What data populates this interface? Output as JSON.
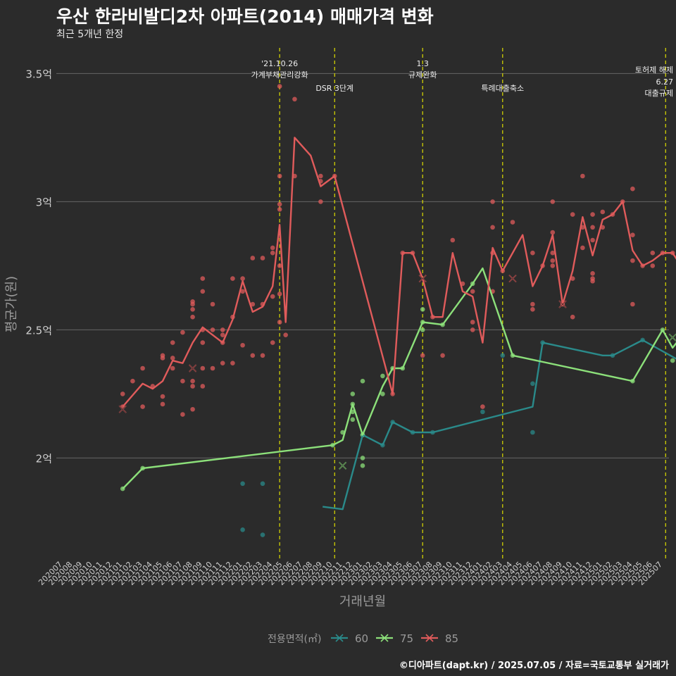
{
  "chart_data": {
    "type": "line",
    "title": "우산 한라비발디2차 아파트(2014) 매매가격 변화",
    "subtitle": "최근 5개년 한정",
    "xlabel": "거래년월",
    "ylabel": "평균가(원)",
    "caption": "©디아파트(dapt.kr) / 2025.07.05 / 자료=국토교통부 실거래가",
    "legend": {
      "title": "전용면적(㎡)",
      "position": "bottom"
    },
    "ylim": [
      1.6,
      3.6
    ],
    "y_ticks": [
      {
        "value": 2.0,
        "label": "2억"
      },
      {
        "value": 2.5,
        "label": "2.5억"
      },
      {
        "value": 3.0,
        "label": "3억"
      },
      {
        "value": 3.5,
        "label": "3.5억"
      }
    ],
    "categories": [
      "202007",
      "202008",
      "202009",
      "202010",
      "202011",
      "202012",
      "202101",
      "202102",
      "202103",
      "202104",
      "202105",
      "202106",
      "202107",
      "202108",
      "202109",
      "202110",
      "202111",
      "202112",
      "202201",
      "202202",
      "202203",
      "202204",
      "202205",
      "202206",
      "202207",
      "202208",
      "202209",
      "202210",
      "202211",
      "202212",
      "202301",
      "202302",
      "202303",
      "202304",
      "202305",
      "202306",
      "202307",
      "202308",
      "202309",
      "202310",
      "202311",
      "202312",
      "202401",
      "202402",
      "202403",
      "202404",
      "202405",
      "202406",
      "202407",
      "202408",
      "202409",
      "202410",
      "202411",
      "202412",
      "202501",
      "202502",
      "202503",
      "202504",
      "202505",
      "202506",
      "202507"
    ],
    "series": [
      {
        "name": "60",
        "color": "#2a8a8a",
        "line": [
          [
            26,
            1.81
          ],
          [
            28,
            1.8
          ],
          [
            30,
            2.09
          ],
          [
            32,
            2.05
          ],
          [
            33,
            2.14
          ],
          [
            35,
            2.1
          ],
          [
            37,
            2.1
          ],
          [
            47,
            2.2
          ],
          [
            48,
            2.45
          ],
          [
            54,
            2.4
          ],
          [
            55,
            2.4
          ],
          [
            58,
            2.46
          ],
          [
            70,
            2.2
          ],
          [
            72,
            2.28
          ],
          [
            78,
            2.25
          ]
        ],
        "points": [
          [
            18,
            1.9
          ],
          [
            18,
            1.72
          ],
          [
            20,
            1.9
          ],
          [
            20,
            1.7
          ],
          [
            30,
            2.09
          ],
          [
            32,
            2.05
          ],
          [
            33,
            2.14
          ],
          [
            35,
            2.1
          ],
          [
            37,
            2.1
          ],
          [
            42,
            2.18
          ],
          [
            44,
            2.4
          ],
          [
            47,
            2.1
          ],
          [
            47,
            2.29
          ],
          [
            48,
            2.45
          ],
          [
            55,
            2.4
          ],
          [
            58,
            2.46
          ],
          [
            70,
            2.2
          ],
          [
            72,
            2.28
          ],
          [
            78,
            2.25
          ]
        ],
        "marker": []
      },
      {
        "name": "75",
        "color": "#8ce07a",
        "line": [
          [
            6,
            1.88
          ],
          [
            8,
            1.96
          ],
          [
            27,
            2.05
          ],
          [
            28,
            2.07
          ],
          [
            29,
            2.21
          ],
          [
            30,
            2.09
          ],
          [
            32,
            2.28
          ],
          [
            33,
            2.35
          ],
          [
            34,
            2.35
          ],
          [
            36,
            2.53
          ],
          [
            38,
            2.52
          ],
          [
            41,
            2.68
          ],
          [
            42,
            2.74
          ],
          [
            45,
            2.4
          ],
          [
            57,
            2.3
          ],
          [
            60,
            2.5
          ],
          [
            61,
            2.43
          ],
          [
            62,
            2.48
          ],
          [
            65,
            2.4
          ],
          [
            67,
            2.35
          ],
          [
            73,
            2.32
          ],
          [
            75,
            2.5
          ],
          [
            80,
            2.34
          ]
        ],
        "points": [
          [
            6,
            1.88
          ],
          [
            8,
            1.96
          ],
          [
            27,
            2.05
          ],
          [
            28,
            2.1
          ],
          [
            29,
            2.21
          ],
          [
            29,
            2.25
          ],
          [
            29,
            2.18
          ],
          [
            29,
            2.15
          ],
          [
            30,
            2.0
          ],
          [
            30,
            1.97
          ],
          [
            30,
            2.09
          ],
          [
            30,
            2.3
          ],
          [
            32,
            2.32
          ],
          [
            32,
            2.25
          ],
          [
            33,
            2.35
          ],
          [
            34,
            2.35
          ],
          [
            36,
            2.53
          ],
          [
            36,
            2.58
          ],
          [
            36,
            2.5
          ],
          [
            38,
            2.52
          ],
          [
            41,
            2.68
          ],
          [
            45,
            2.4
          ],
          [
            57,
            2.3
          ],
          [
            60,
            2.5
          ],
          [
            61,
            2.38
          ],
          [
            62,
            2.48
          ],
          [
            65,
            2.5
          ],
          [
            65,
            2.18
          ],
          [
            66,
            2.4
          ],
          [
            66,
            2.3
          ],
          [
            67,
            2.35
          ],
          [
            73,
            2.32
          ],
          [
            75,
            2.5
          ],
          [
            80,
            2.34
          ]
        ],
        "marker": [
          [
            28,
            1.97
          ],
          [
            61,
            2.47
          ]
        ]
      },
      {
        "name": "85",
        "color": "#e05b5b",
        "line": [
          [
            6,
            2.2
          ],
          [
            8,
            2.29
          ],
          [
            9,
            2.27
          ],
          [
            10,
            2.3
          ],
          [
            11,
            2.38
          ],
          [
            12,
            2.37
          ],
          [
            13,
            2.45
          ],
          [
            14,
            2.51
          ],
          [
            15,
            2.48
          ],
          [
            16,
            2.45
          ],
          [
            17,
            2.54
          ],
          [
            18,
            2.69
          ],
          [
            19,
            2.57
          ],
          [
            20,
            2.59
          ],
          [
            21,
            2.67
          ],
          [
            21.7,
            2.91
          ],
          [
            22.3,
            2.53
          ],
          [
            23.2,
            3.25
          ],
          [
            24.8,
            3.18
          ],
          [
            25.8,
            3.06
          ],
          [
            27.2,
            3.1
          ],
          [
            33,
            2.25
          ],
          [
            34,
            2.8
          ],
          [
            35,
            2.8
          ],
          [
            36,
            2.7
          ],
          [
            37,
            2.55
          ],
          [
            38,
            2.55
          ],
          [
            39,
            2.8
          ],
          [
            40,
            2.65
          ],
          [
            41,
            2.63
          ],
          [
            42,
            2.45
          ],
          [
            43,
            2.82
          ],
          [
            44,
            2.73
          ],
          [
            46,
            2.87
          ],
          [
            47,
            2.67
          ],
          [
            48,
            2.75
          ],
          [
            49,
            2.87
          ],
          [
            50,
            2.6
          ],
          [
            51,
            2.73
          ],
          [
            52,
            2.94
          ],
          [
            53,
            2.79
          ],
          [
            54,
            2.93
          ],
          [
            55,
            2.95
          ],
          [
            56,
            3.0
          ],
          [
            57,
            2.81
          ],
          [
            58,
            2.75
          ],
          [
            59,
            2.77
          ],
          [
            60,
            2.8
          ],
          [
            61,
            2.8
          ],
          [
            62,
            2.74
          ]
        ],
        "points": [
          [
            6,
            2.2
          ],
          [
            6,
            2.25
          ],
          [
            7,
            2.3
          ],
          [
            8,
            2.35
          ],
          [
            8,
            2.2
          ],
          [
            9,
            2.28
          ],
          [
            10,
            2.39
          ],
          [
            10,
            2.4
          ],
          [
            10,
            2.24
          ],
          [
            10,
            2.21
          ],
          [
            11,
            2.35
          ],
          [
            11,
            2.39
          ],
          [
            11,
            2.45
          ],
          [
            12,
            2.3
          ],
          [
            12,
            2.17
          ],
          [
            12,
            2.49
          ],
          [
            13,
            2.55
          ],
          [
            13,
            2.58
          ],
          [
            13,
            2.6
          ],
          [
            13,
            2.61
          ],
          [
            13,
            2.3
          ],
          [
            13,
            2.28
          ],
          [
            13,
            2.19
          ],
          [
            14,
            2.5
          ],
          [
            14,
            2.35
          ],
          [
            14,
            2.28
          ],
          [
            14,
            2.65
          ],
          [
            14,
            2.7
          ],
          [
            14,
            2.45
          ],
          [
            15,
            2.5
          ],
          [
            15,
            2.6
          ],
          [
            15,
            2.35
          ],
          [
            16,
            2.5
          ],
          [
            16,
            2.45
          ],
          [
            16,
            2.37
          ],
          [
            16,
            2.48
          ],
          [
            17,
            2.7
          ],
          [
            17,
            2.55
          ],
          [
            17,
            2.37
          ],
          [
            18,
            2.7
          ],
          [
            18,
            2.65
          ],
          [
            18,
            2.44
          ],
          [
            19,
            2.78
          ],
          [
            19,
            2.6
          ],
          [
            19,
            2.4
          ],
          [
            20,
            2.78
          ],
          [
            20,
            2.6
          ],
          [
            20,
            2.4
          ],
          [
            21,
            2.8
          ],
          [
            21,
            2.82
          ],
          [
            21,
            2.63
          ],
          [
            21,
            2.45
          ],
          [
            21.7,
            3.45
          ],
          [
            21.7,
            3.1
          ],
          [
            21.7,
            2.99
          ],
          [
            21.7,
            2.97
          ],
          [
            21.7,
            2.75
          ],
          [
            21.7,
            2.64
          ],
          [
            21.7,
            2.53
          ],
          [
            22.3,
            2.48
          ],
          [
            23.2,
            3.4
          ],
          [
            23.2,
            3.1
          ],
          [
            25.8,
            3.1
          ],
          [
            25.8,
            3.0
          ],
          [
            25.8,
            3.08
          ],
          [
            27.2,
            3.1
          ],
          [
            33,
            2.25
          ],
          [
            34,
            2.8
          ],
          [
            35,
            2.8
          ],
          [
            36,
            2.4
          ],
          [
            37,
            2.55
          ],
          [
            38,
            2.4
          ],
          [
            39,
            2.85
          ],
          [
            40,
            2.68
          ],
          [
            41,
            2.65
          ],
          [
            41,
            2.53
          ],
          [
            41,
            2.5
          ],
          [
            42,
            2.2
          ],
          [
            43,
            3.0
          ],
          [
            43,
            2.9
          ],
          [
            43,
            2.8
          ],
          [
            43,
            2.65
          ],
          [
            44,
            2.73
          ],
          [
            45,
            2.92
          ],
          [
            47,
            2.8
          ],
          [
            47,
            2.6
          ],
          [
            47,
            2.58
          ],
          [
            48,
            2.75
          ],
          [
            49,
            3.0
          ],
          [
            49,
            2.88
          ],
          [
            49,
            2.8
          ],
          [
            49,
            2.77
          ],
          [
            49,
            2.75
          ],
          [
            50,
            2.6
          ],
          [
            51,
            2.95
          ],
          [
            51,
            2.7
          ],
          [
            51,
            2.55
          ],
          [
            52,
            3.1
          ],
          [
            52,
            2.9
          ],
          [
            52,
            2.82
          ],
          [
            53,
            2.95
          ],
          [
            53,
            2.9
          ],
          [
            53,
            2.85
          ],
          [
            53,
            2.7
          ],
          [
            53,
            2.69
          ],
          [
            53,
            2.72
          ],
          [
            54,
            2.96
          ],
          [
            54,
            2.9
          ],
          [
            55,
            2.95
          ],
          [
            56,
            3.0
          ],
          [
            57,
            3.05
          ],
          [
            57,
            2.87
          ],
          [
            57,
            2.77
          ],
          [
            57,
            2.6
          ],
          [
            58,
            2.75
          ],
          [
            59,
            2.8
          ],
          [
            59,
            2.75
          ],
          [
            60,
            2.8
          ],
          [
            61,
            2.8
          ],
          [
            62,
            2.9
          ],
          [
            62,
            2.85
          ],
          [
            62,
            2.7
          ],
          [
            62,
            2.5
          ]
        ],
        "marker": [
          [
            6,
            2.19
          ],
          [
            13,
            2.35
          ],
          [
            36,
            2.7
          ],
          [
            45,
            2.7
          ],
          [
            50,
            2.6
          ]
        ]
      }
    ],
    "events": [
      {
        "x": 21.7,
        "label": [
          "'21.10.26",
          "가계부채관리강화"
        ]
      },
      {
        "x": 27.2,
        "label": [
          "DSR 3단계"
        ]
      },
      {
        "x": 36,
        "label": [
          "1.3",
          "규제완화"
        ]
      },
      {
        "x": 44,
        "label": [
          "특례대출축소"
        ]
      },
      {
        "x": 60.3,
        "label": [
          "토허제 해제"
        ]
      },
      {
        "x": 64.3,
        "label": [
          "6.27",
          "대출규제"
        ]
      }
    ],
    "grid": true,
    "colors": {
      "background": "#2b2b2b",
      "grid": "#666666",
      "event_line": "#dede00",
      "axis_text": "#cfcfcf"
    }
  }
}
